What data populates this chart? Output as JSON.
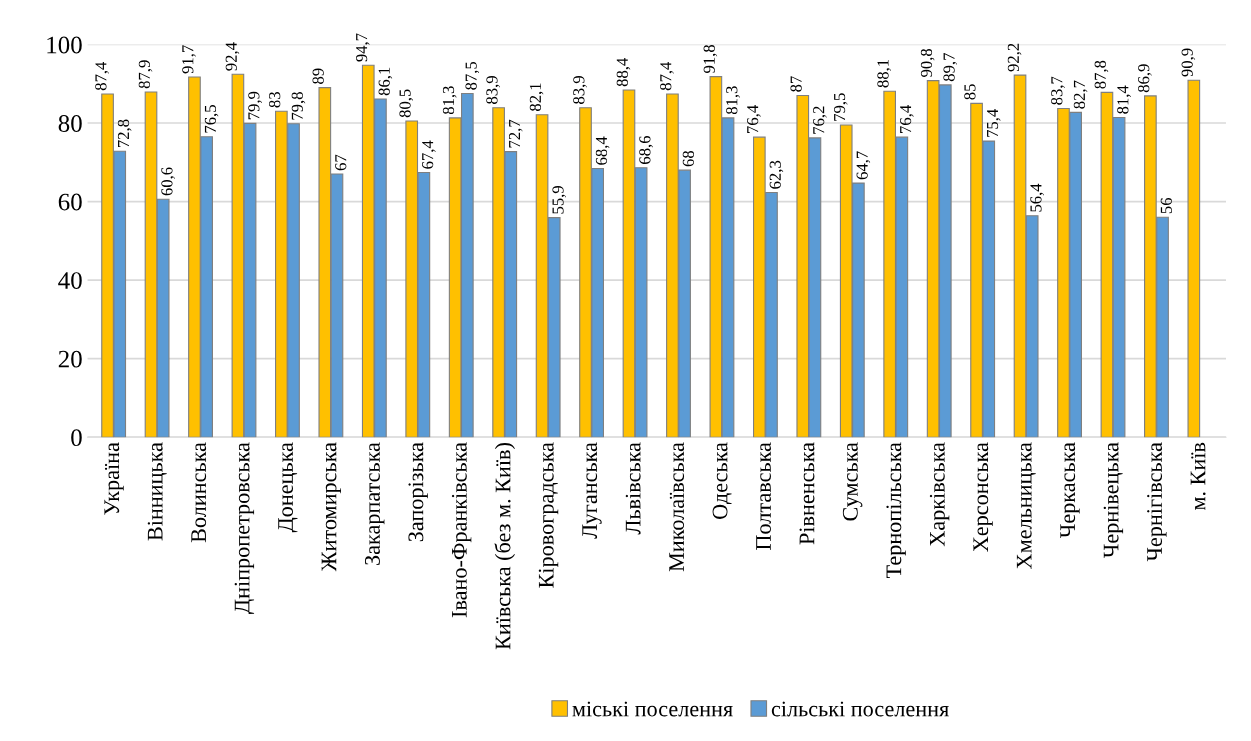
{
  "chart_data": {
    "type": "bar",
    "categories": [
      "Україна",
      "Вінницька",
      "Волинська",
      "Дніпропетровська",
      "Донецька",
      "Житомирська",
      "Закарпатська",
      "Запорізька",
      "Івано-Франківська",
      "Київська (без м. Київ)",
      "Кіровоградська",
      "Луганська",
      "Львівська",
      "Миколаївська",
      "Одеська",
      "Полтавська",
      "Рівненська",
      "Сумська",
      "Тернопільська",
      "Харківська",
      "Херсонська",
      "Хмельницька",
      "Черкаська",
      "Чернівецька",
      "Чернігівська",
      "м. Київ"
    ],
    "series": [
      {
        "name": "міські поселення",
        "color": "#ffc000",
        "values": [
          87.4,
          87.9,
          91.7,
          92.4,
          83,
          89,
          94.7,
          80.5,
          81.3,
          83.9,
          82.1,
          83.9,
          88.4,
          87.4,
          91.8,
          76.4,
          87,
          79.5,
          88.1,
          90.8,
          85,
          92.2,
          83.7,
          87.8,
          86.9,
          90.9
        ],
        "value_labels": [
          "87,4",
          "87,9",
          "91,7",
          "92,4",
          "83",
          "89",
          "94,7",
          "80,5",
          "81,3",
          "83,9",
          "82,1",
          "83,9",
          "88,4",
          "87,4",
          "91,8",
          "76,4",
          "87",
          "79,5",
          "88,1",
          "90,8",
          "85",
          "92,2",
          "83,7",
          "87,8",
          "86,9",
          "90,9"
        ]
      },
      {
        "name": "сільські поселення",
        "color": "#5b9bd5",
        "values": [
          72.8,
          60.6,
          76.5,
          79.9,
          79.8,
          67,
          86.1,
          67.4,
          87.5,
          72.7,
          55.9,
          68.4,
          68.6,
          68,
          81.3,
          62.3,
          76.2,
          64.7,
          76.4,
          89.7,
          75.4,
          56.4,
          82.7,
          81.4,
          56,
          null
        ],
        "value_labels": [
          "72,8",
          "60,6",
          "76,5",
          "79,9",
          "79,8",
          "67",
          "86,1",
          "67,4",
          "87,5",
          "72,7",
          "55,9",
          "68,4",
          "68,6",
          "68",
          "81,3",
          "62,3",
          "76,2",
          "64,7",
          "76,4",
          "89,7",
          "75,4",
          "56,4",
          "82,7",
          "81,4",
          "56",
          null
        ]
      }
    ],
    "ylim": [
      0,
      100
    ],
    "yticks": [
      0,
      20,
      40,
      60,
      80,
      100
    ],
    "grid": "y",
    "legend": "bottom"
  }
}
